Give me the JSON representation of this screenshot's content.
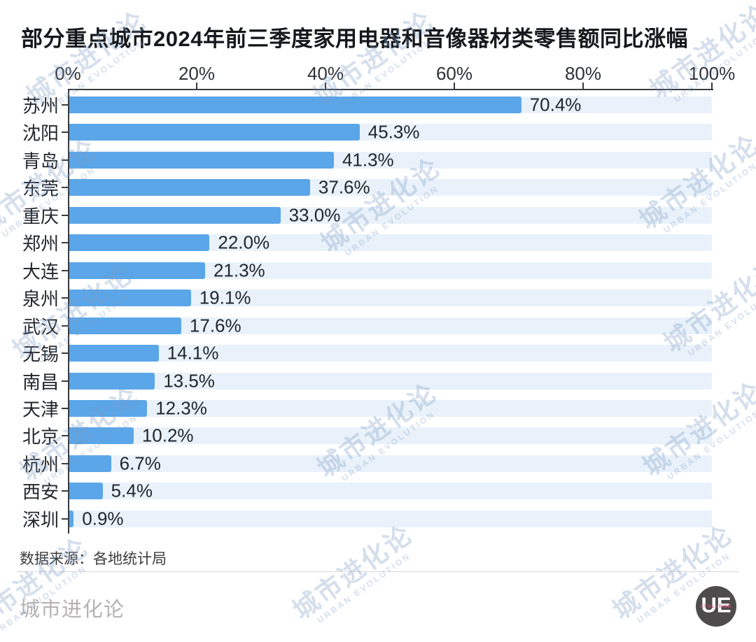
{
  "title": "部分重点城市2024年前三季度家用电器和音像器材类零售额同比涨幅",
  "chart_data": {
    "type": "bar",
    "orientation": "horizontal",
    "title": "部分重点城市2024年前三季度家用电器和音像器材类零售额同比涨幅",
    "categories": [
      "苏州",
      "沈阳",
      "青岛",
      "东莞",
      "重庆",
      "郑州",
      "大连",
      "泉州",
      "武汉",
      "无锡",
      "南昌",
      "天津",
      "北京",
      "杭州",
      "西安",
      "深圳"
    ],
    "values": [
      70.4,
      45.3,
      41.3,
      37.6,
      33.0,
      22.0,
      21.3,
      19.1,
      17.6,
      14.1,
      13.5,
      12.3,
      10.2,
      6.7,
      5.4,
      0.9
    ],
    "value_labels": [
      "70.4%",
      "45.3%",
      "41.3%",
      "37.6%",
      "33.0%",
      "22.0%",
      "21.3%",
      "19.1%",
      "17.6%",
      "14.1%",
      "13.5%",
      "12.3%",
      "10.2%",
      "6.7%",
      "5.4%",
      "0.9%"
    ],
    "x_ticks": [
      "0%",
      "20%",
      "40%",
      "60%",
      "80%",
      "100%"
    ],
    "xlim": [
      0,
      100
    ],
    "grid": false,
    "legend": "none",
    "bar_color": "#5BA6E8",
    "track_color": "#E9F2FB"
  },
  "footer": {
    "source": "数据来源：各地统计局",
    "brand": "城市进化论"
  },
  "logo": {
    "text": "UE",
    "sub": "EVOLUTION"
  },
  "watermark": {
    "zh": "城市进化论",
    "en": "URBAN EVOLUTION"
  }
}
